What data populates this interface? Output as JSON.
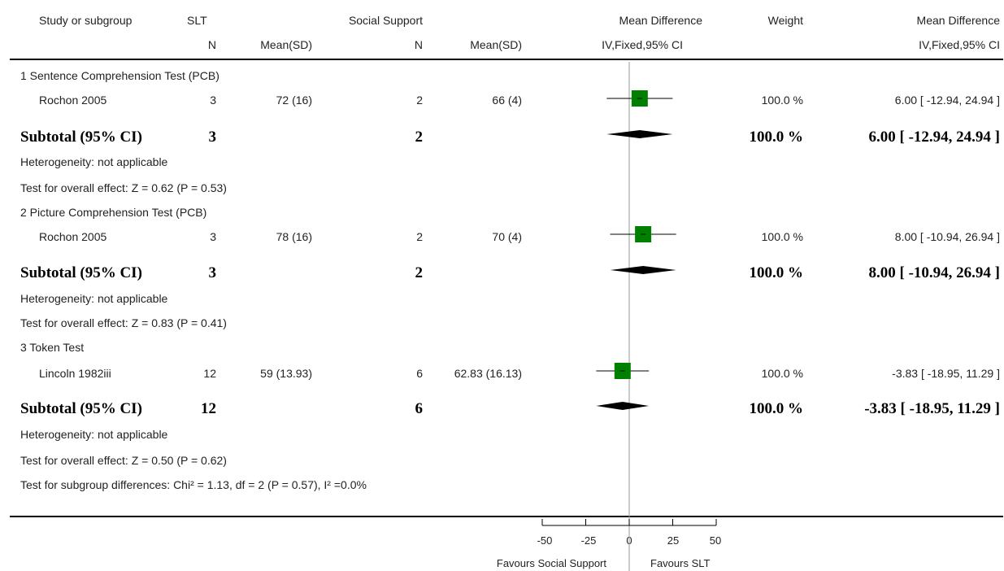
{
  "header": {
    "study_col": "Study or subgroup",
    "group1": "SLT",
    "group2": "Social Support",
    "n1": "N",
    "mean1": "Mean(SD)",
    "n2": "N",
    "mean2": "Mean(SD)",
    "md_title": "Mean Difference",
    "md_sub": "IV,Fixed,95% CI",
    "weight": "Weight",
    "md2_title": "Mean Difference",
    "md2_sub": "IV,Fixed,95% CI"
  },
  "subgroups": [
    {
      "title": "1 Sentence Comprehension Test (PCB)",
      "study": {
        "name": "Rochon 2005",
        "n1": "3",
        "mean1": "72 (16)",
        "n2": "2",
        "mean2": "66 (4)",
        "weight": "100.0 %",
        "ci": "6.00 [ -12.94, 24.94 ]"
      },
      "subtotal": {
        "label": "Subtotal (95% CI)",
        "n1": "3",
        "n2": "2",
        "weight": "100.0 %",
        "ci": "6.00 [ -12.94, 24.94 ]"
      },
      "heterogeneity": "Heterogeneity: not applicable",
      "overall": "Test for overall effect: Z = 0.62 (P = 0.53)"
    },
    {
      "title": "2 Picture Comprehension Test (PCB)",
      "study": {
        "name": "Rochon 2005",
        "n1": "3",
        "mean1": "78 (16)",
        "n2": "2",
        "mean2": "70 (4)",
        "weight": "100.0 %",
        "ci": "8.00 [ -10.94, 26.94 ]"
      },
      "subtotal": {
        "label": "Subtotal (95% CI)",
        "n1": "3",
        "n2": "2",
        "weight": "100.0 %",
        "ci": "8.00 [ -10.94, 26.94 ]"
      },
      "heterogeneity": "Heterogeneity: not applicable",
      "overall": "Test for overall effect: Z = 0.83 (P = 0.41)"
    },
    {
      "title": "3 Token Test",
      "study": {
        "name": "Lincoln 1982iii",
        "n1": "12",
        "mean1": "59 (13.93)",
        "n2": "6",
        "mean2": "62.83 (16.13)",
        "weight": "100.0 %",
        "ci": "-3.83 [ -18.95, 11.29 ]"
      },
      "subtotal": {
        "label": "Subtotal (95% CI)",
        "n1": "12",
        "n2": "6",
        "weight": "100.0 %",
        "ci": "-3.83 [ -18.95, 11.29 ]"
      },
      "heterogeneity": "Heterogeneity: not applicable",
      "overall": "Test for overall effect: Z = 0.50 (P = 0.62)"
    }
  ],
  "subgroup_differences": "Test for subgroup differences: Chi² = 1.13, df = 2 (P = 0.57), I² =0.0%",
  "axis": {
    "ticks": [
      "-50",
      "-25",
      "0",
      "25",
      "50"
    ],
    "favours_left": "Favours Social Support",
    "favours_right": "Favours SLT"
  },
  "colors": {
    "square": "#008000",
    "diamond": "#000000",
    "zero_line": "#999999"
  },
  "chart_data": {
    "type": "forest",
    "xlim": [
      -50,
      50
    ],
    "xticks": [
      -50,
      -25,
      0,
      25,
      50
    ],
    "studies": [
      {
        "subgroup": "1 Sentence Comprehension Test (PCB)",
        "study": "Rochon 2005",
        "md": 6.0,
        "lo": -12.94,
        "hi": 24.94,
        "weight": 100.0
      },
      {
        "subgroup": "2 Picture Comprehension Test (PCB)",
        "study": "Rochon 2005",
        "md": 8.0,
        "lo": -10.94,
        "hi": 26.94,
        "weight": 100.0
      },
      {
        "subgroup": "3 Token Test",
        "study": "Lincoln 1982iii",
        "md": -3.83,
        "lo": -18.95,
        "hi": 11.29,
        "weight": 100.0
      }
    ],
    "subtotals": [
      {
        "subgroup": "1 Sentence Comprehension Test (PCB)",
        "md": 6.0,
        "lo": -12.94,
        "hi": 24.94
      },
      {
        "subgroup": "2 Picture Comprehension Test (PCB)",
        "md": 8.0,
        "lo": -10.94,
        "hi": 26.94
      },
      {
        "subgroup": "3 Token Test",
        "md": -3.83,
        "lo": -18.95,
        "hi": 11.29
      }
    ]
  }
}
